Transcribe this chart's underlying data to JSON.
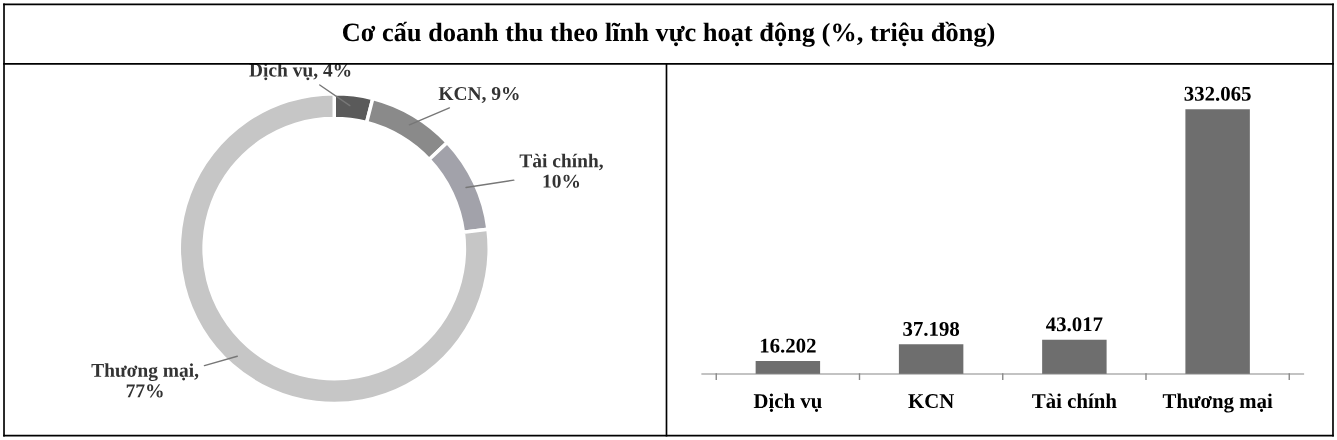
{
  "chart_data": [
    {
      "type": "donut",
      "title": "Cơ cấu doanh thu theo lĩnh vực hoạt động (%, triệu đồng)",
      "categories": [
        "Dịch vụ, 4%",
        "KCN, 9%",
        "Tài chính,\n10%",
        "Thương mại,\n77%"
      ],
      "values": [
        4,
        9,
        10,
        77
      ],
      "colors": [
        "#5a5a5a",
        "#8a8a8a",
        "#a2a2aa",
        "#c6c6c6"
      ]
    },
    {
      "type": "bar",
      "categories": [
        "Dịch vụ",
        "KCN",
        "Tài chính",
        "Thương mại"
      ],
      "values": [
        16202,
        37198,
        43017,
        332065
      ],
      "color": "#6e6e6e",
      "value_labels": [
        "16.202",
        "37.198",
        "43.017",
        "332.065"
      ]
    }
  ]
}
